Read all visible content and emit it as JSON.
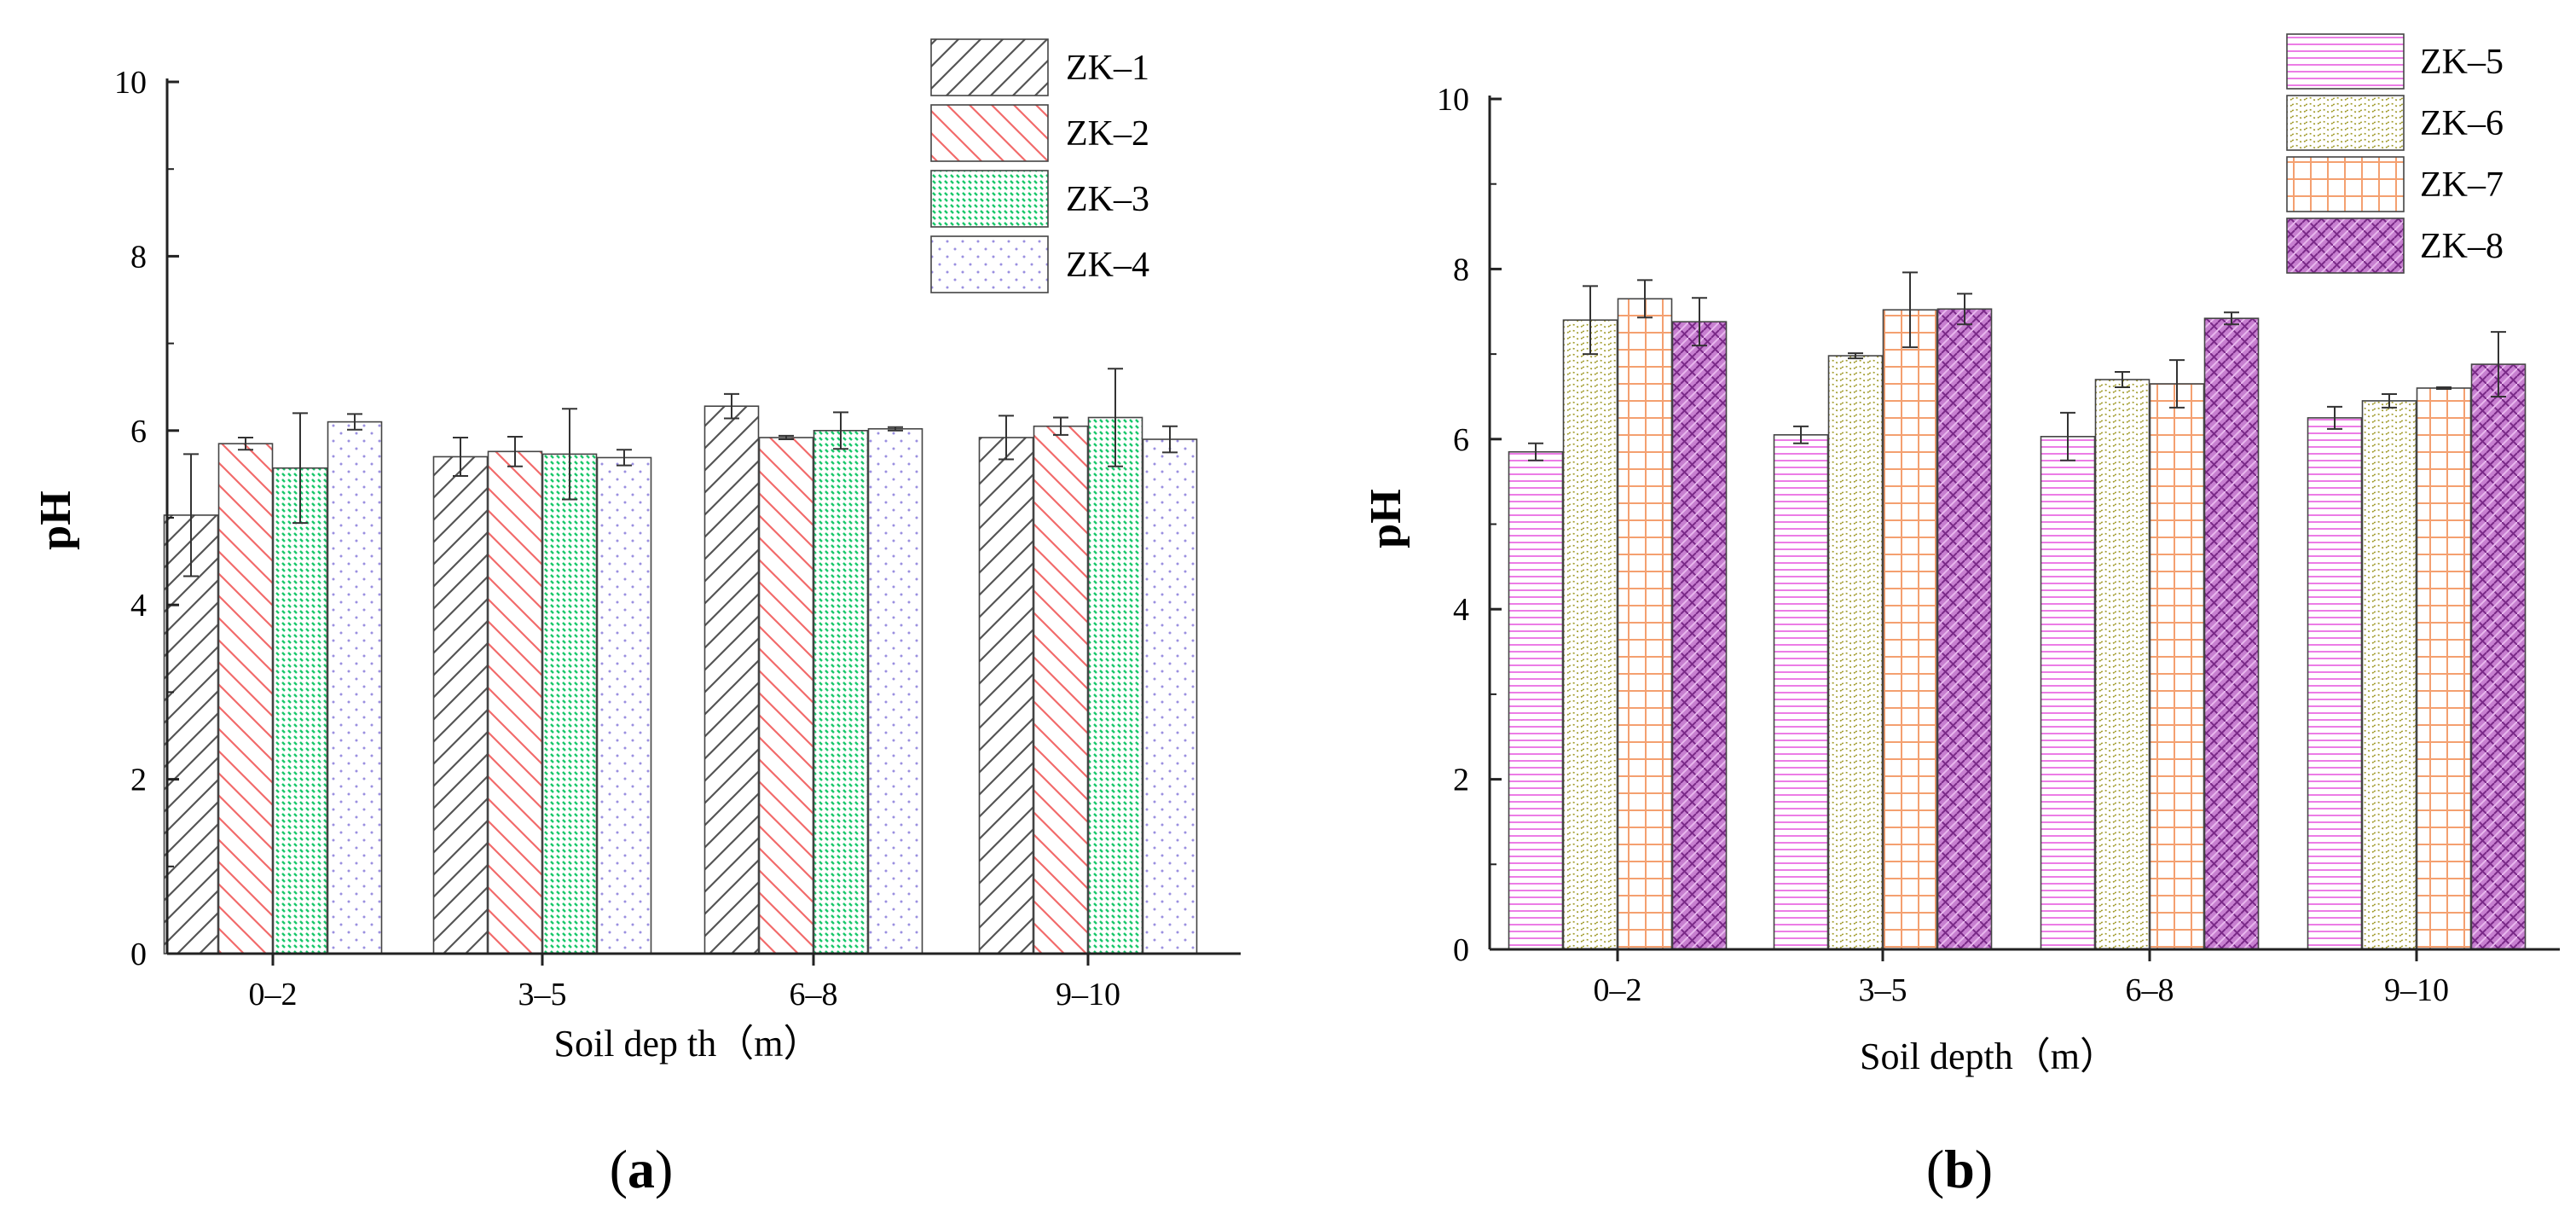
{
  "figure": {
    "panels": [
      "a",
      "b"
    ]
  },
  "chart_data": [
    {
      "id": "a",
      "type": "bar",
      "panel_label": "a",
      "title": "",
      "xlabel": "Soil dep th（m）",
      "ylabel": "pH",
      "ylim": [
        0,
        10
      ],
      "yticks": [
        "0",
        "2",
        "4",
        "6",
        "8",
        "10"
      ],
      "categories": [
        "0–2",
        "3–5",
        "6–8",
        "9–10"
      ],
      "legend_position": "top-right",
      "series": [
        {
          "name": "ZK–1",
          "color": "#555555",
          "pattern": "diag-right",
          "values": [
            5.03,
            5.7,
            6.28,
            5.92
          ],
          "errors": [
            0.7,
            0.22,
            0.14,
            0.25
          ]
        },
        {
          "name": "ZK–2",
          "color": "#f26b6b",
          "pattern": "diag-left",
          "values": [
            5.85,
            5.76,
            5.92,
            6.05
          ],
          "errors": [
            0.07,
            0.17,
            0.02,
            0.1
          ]
        },
        {
          "name": "ZK–3",
          "color": "#18c76a",
          "pattern": "dash-dots",
          "values": [
            5.57,
            5.73,
            6.0,
            6.15
          ],
          "errors": [
            0.63,
            0.52,
            0.21,
            0.56
          ]
        },
        {
          "name": "ZK–4",
          "color": "#9a8fe0",
          "pattern": "dots",
          "values": [
            6.1,
            5.69,
            6.02,
            5.9
          ],
          "errors": [
            0.09,
            0.09,
            0.02,
            0.15
          ]
        }
      ]
    },
    {
      "id": "b",
      "type": "bar",
      "panel_label": "b",
      "title": "",
      "xlabel": "Soil depth（m）",
      "ylabel": "pH",
      "ylim": [
        0,
        10
      ],
      "yticks": [
        "0",
        "2",
        "4",
        "6",
        "8",
        "10"
      ],
      "categories": [
        "0–2",
        "3–5",
        "6–8",
        "9–10"
      ],
      "legend_position": "top-right",
      "series": [
        {
          "name": "ZK–5",
          "color": "#e85ce0",
          "pattern": "hlines",
          "values": [
            5.85,
            6.05,
            6.03,
            6.25
          ],
          "errors": [
            0.1,
            0.1,
            0.28,
            0.13
          ]
        },
        {
          "name": "ZK–6",
          "color": "#a09a2a",
          "pattern": "dots-wave",
          "values": [
            7.4,
            6.98,
            6.7,
            6.45
          ],
          "errors": [
            0.4,
            0.03,
            0.09,
            0.08
          ]
        },
        {
          "name": "ZK–7",
          "color": "#f4a070",
          "pattern": "grid",
          "values": [
            7.65,
            7.52,
            6.65,
            6.6
          ],
          "errors": [
            0.22,
            0.44,
            0.28,
            0.01
          ]
        },
        {
          "name": "ZK–8",
          "color": "#b04ab8",
          "pattern": "weave",
          "values": [
            7.38,
            7.53,
            7.42,
            6.88
          ],
          "errors": [
            0.28,
            0.18,
            0.07,
            0.38
          ]
        }
      ]
    }
  ]
}
